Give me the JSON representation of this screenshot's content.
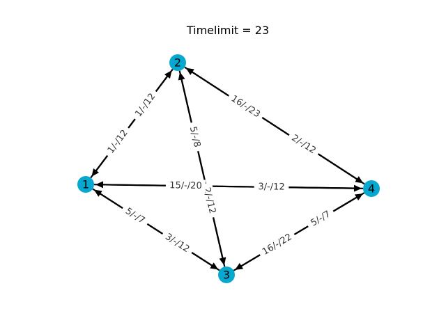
{
  "title": "Timelimit = 23",
  "colors": {
    "node": "#07a8d0",
    "edge": "#000000",
    "label": "#333333"
  },
  "nodes": [
    {
      "id": "1",
      "label": "1"
    },
    {
      "id": "2",
      "label": "2"
    },
    {
      "id": "3",
      "label": "3"
    },
    {
      "id": "4",
      "label": "4"
    }
  ],
  "edges": [
    {
      "from": "2",
      "to": "1",
      "label": "1/-/12"
    },
    {
      "from": "1",
      "to": "2",
      "label": "1/-/12"
    },
    {
      "from": "4",
      "to": "2",
      "label": "16/-/23"
    },
    {
      "from": "2",
      "to": "4",
      "label": "2/-/12"
    },
    {
      "from": "3",
      "to": "2",
      "label": "5/-/8"
    },
    {
      "from": "2",
      "to": "3",
      "label": "2/-/12"
    },
    {
      "from": "4",
      "to": "1",
      "label": "15/-/20"
    },
    {
      "from": "1",
      "to": "4",
      "label": "3/-/12"
    },
    {
      "from": "3",
      "to": "1",
      "label": "5/-/7"
    },
    {
      "from": "1",
      "to": "3",
      "label": "3/-/12"
    },
    {
      "from": "4",
      "to": "3",
      "label": "16/-/22"
    },
    {
      "from": "3",
      "to": "4",
      "label": "5/-/7"
    }
  ]
}
